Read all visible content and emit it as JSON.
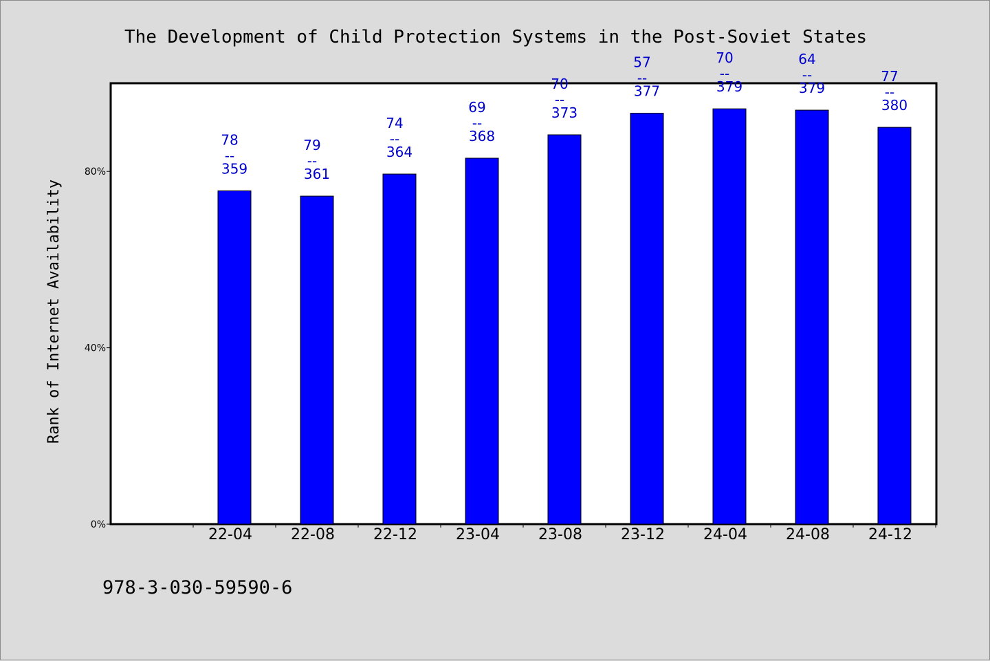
{
  "chart_data": {
    "type": "bar",
    "title": "The Development of Child Protection Systems in the Post-Soviet States",
    "ylabel": "Rank of Internet Availability",
    "xlabel": "",
    "categories": [
      "22-04",
      "22-08",
      "22-12",
      "23-04",
      "23-08",
      "23-12",
      "24-04",
      "24-08",
      "24-12"
    ],
    "values": [
      75.6,
      74.4,
      79.4,
      83.0,
      88.3,
      93.2,
      94.2,
      93.9,
      90.0
    ],
    "bar_labels": [
      {
        "top": "78",
        "sep": "--",
        "bottom": "359"
      },
      {
        "top": "79",
        "sep": "--",
        "bottom": "361"
      },
      {
        "top": "74",
        "sep": "--",
        "bottom": "364"
      },
      {
        "top": "69",
        "sep": "--",
        "bottom": "368"
      },
      {
        "top": "70",
        "sep": "--",
        "bottom": "373"
      },
      {
        "top": "57",
        "sep": "--",
        "bottom": "377"
      },
      {
        "top": "70",
        "sep": "--",
        "bottom": "379"
      },
      {
        "top": "64",
        "sep": "--",
        "bottom": "379"
      },
      {
        "top": "77",
        "sep": "--",
        "bottom": "380"
      }
    ],
    "yticks": [
      {
        "value": 0,
        "label": "0%"
      },
      {
        "value": 40,
        "label": "40%"
      },
      {
        "value": 80,
        "label": "80%"
      }
    ],
    "ylim": [
      0,
      100
    ],
    "grid": false,
    "legend": "none",
    "bar_color": "#0000ff",
    "label_color": "#0000cc"
  },
  "footer": {
    "isbn": "978-3-030-59590-6"
  }
}
